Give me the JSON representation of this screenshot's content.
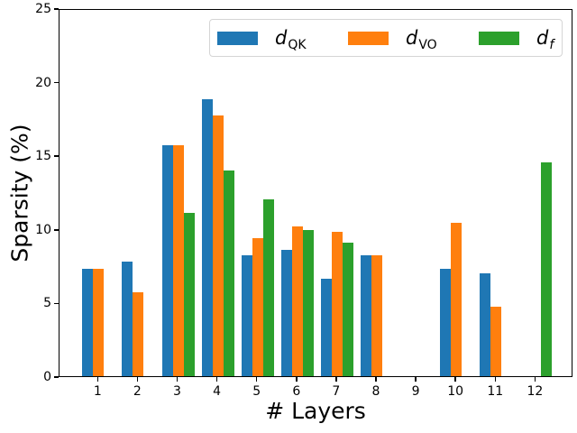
{
  "chart_data": {
    "type": "bar",
    "title": "",
    "xlabel": "# Layers",
    "ylabel": "Sparsity (%)",
    "ylim": [
      0,
      25
    ],
    "yticks": [
      0,
      5,
      10,
      15,
      20,
      25
    ],
    "categories": [
      "1",
      "2",
      "3",
      "4",
      "5",
      "6",
      "7",
      "8",
      "9",
      "10",
      "11",
      "12"
    ],
    "series": [
      {
        "name": "d_QK",
        "label": {
          "base": "d",
          "sub": "QK",
          "sub_italic": false
        },
        "color": "#1f77b4",
        "values": [
          7.3,
          7.8,
          15.7,
          18.8,
          8.2,
          8.6,
          6.6,
          8.2,
          null,
          7.3,
          7.0,
          null
        ]
      },
      {
        "name": "d_VO",
        "label": {
          "base": "d",
          "sub": "VO",
          "sub_italic": false
        },
        "color": "#ff7f0e",
        "values": [
          7.3,
          5.7,
          15.7,
          17.7,
          9.4,
          10.2,
          9.8,
          8.2,
          null,
          10.4,
          4.7,
          null
        ]
      },
      {
        "name": "d_f",
        "label": {
          "base": "d",
          "sub": "f",
          "sub_italic": true
        },
        "color": "#2ca02c",
        "values": [
          null,
          null,
          11.1,
          14.0,
          12.0,
          9.9,
          9.1,
          null,
          null,
          null,
          null,
          14.5
        ]
      }
    ],
    "legend": {
      "position": "upper center",
      "border_color": "#d5d5d5"
    },
    "grid": false,
    "background": "#ffffff"
  }
}
